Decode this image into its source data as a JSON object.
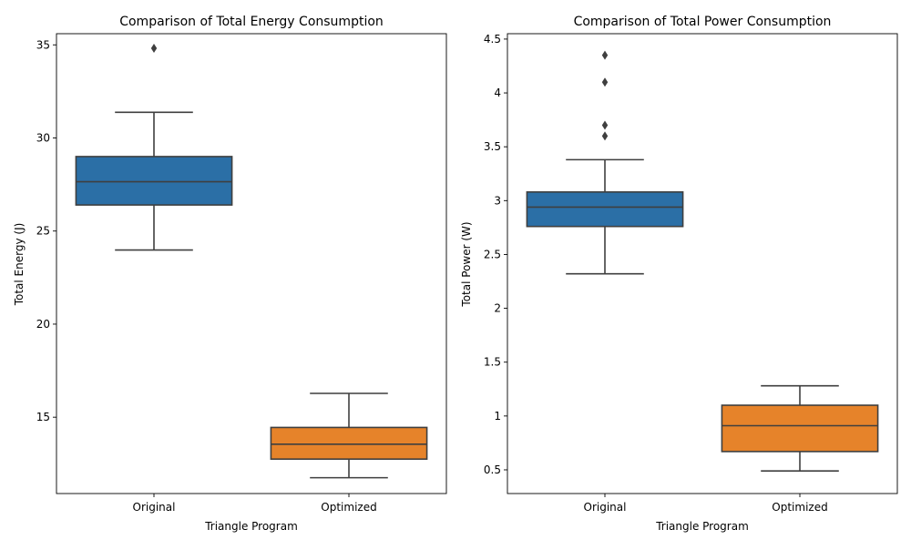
{
  "chart_data": [
    {
      "type": "box",
      "title": "Comparison of Total Energy Consumption",
      "xlabel": "Triangle Program",
      "ylabel": "Total Energy (J)",
      "ylim": [
        10.9,
        35.6
      ],
      "yticks": [
        15,
        20,
        25,
        30,
        35
      ],
      "categories": [
        "Original",
        "Optimized"
      ],
      "series": [
        {
          "category": "Original",
          "color": "#2b6fa6",
          "whisker_low": 23.98,
          "q1": 26.4,
          "median": 27.65,
          "q3": 29.0,
          "whisker_high": 31.38,
          "outliers": [
            34.82
          ]
        },
        {
          "category": "Optimized",
          "color": "#e6832a",
          "whisker_low": 11.75,
          "q1": 12.75,
          "median": 13.55,
          "q3": 14.45,
          "whisker_high": 16.28,
          "outliers": []
        }
      ]
    },
    {
      "type": "box",
      "title": "Comparison of Total Power Consumption",
      "xlabel": "Triangle Program",
      "ylabel": "Total Power (W)",
      "ylim": [
        0.28,
        4.55
      ],
      "yticks": [
        0.5,
        1.0,
        1.5,
        2.0,
        2.5,
        3.0,
        3.5,
        4.0,
        4.5
      ],
      "categories": [
        "Original",
        "Optimized"
      ],
      "series": [
        {
          "category": "Original",
          "color": "#2b6fa6",
          "whisker_low": 2.32,
          "q1": 2.76,
          "median": 2.94,
          "q3": 3.08,
          "whisker_high": 3.38,
          "outliers": [
            3.6,
            3.7,
            4.1,
            4.35
          ]
        },
        {
          "category": "Optimized",
          "color": "#e6832a",
          "whisker_low": 0.49,
          "q1": 0.67,
          "median": 0.91,
          "q3": 1.1,
          "whisker_high": 1.28,
          "outliers": []
        }
      ]
    }
  ]
}
